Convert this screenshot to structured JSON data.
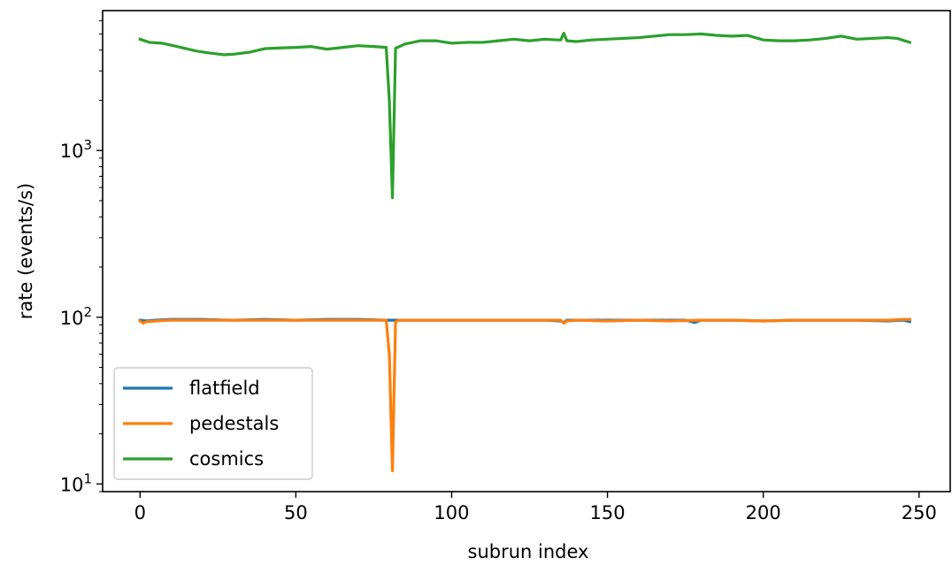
{
  "chart_data": {
    "type": "line",
    "title": "",
    "xlabel": "subrun index",
    "ylabel": "rate (events/s)",
    "yscale": "log",
    "xlim": [
      -12,
      260
    ],
    "ylim": [
      9,
      6900
    ],
    "grid": false,
    "legend_position": "lower-left",
    "x_ticks": [
      0,
      50,
      100,
      150,
      200,
      250
    ],
    "x_tick_labels": [
      "0",
      "50",
      "100",
      "150",
      "200",
      "250"
    ],
    "y_ticks": [
      {
        "value": 10,
        "base": "10",
        "exp": "1"
      },
      {
        "value": 100,
        "base": "10",
        "exp": "2"
      },
      {
        "value": 1000,
        "base": "10",
        "exp": "3"
      }
    ],
    "series": [
      {
        "name": "flatfield",
        "color": "#1f77b4",
        "points": [
          [
            0,
            96
          ],
          [
            2,
            95
          ],
          [
            5,
            96
          ],
          [
            10,
            97
          ],
          [
            20,
            97
          ],
          [
            30,
            96
          ],
          [
            40,
            97
          ],
          [
            50,
            96
          ],
          [
            60,
            97
          ],
          [
            70,
            97
          ],
          [
            79,
            96
          ],
          [
            80,
            96
          ],
          [
            81,
            96
          ],
          [
            82,
            96
          ],
          [
            90,
            96
          ],
          [
            100,
            96
          ],
          [
            110,
            96
          ],
          [
            120,
            96
          ],
          [
            130,
            96
          ],
          [
            135,
            95
          ],
          [
            136,
            93
          ],
          [
            137,
            96
          ],
          [
            150,
            96
          ],
          [
            160,
            96
          ],
          [
            170,
            96
          ],
          [
            175,
            96
          ],
          [
            178,
            93
          ],
          [
            180,
            96
          ],
          [
            190,
            96
          ],
          [
            200,
            95
          ],
          [
            210,
            96
          ],
          [
            220,
            96
          ],
          [
            230,
            96
          ],
          [
            240,
            95
          ],
          [
            245,
            96
          ],
          [
            247,
            94
          ]
        ]
      },
      {
        "name": "pedestals",
        "color": "#ff7f0e",
        "points": [
          [
            0,
            95
          ],
          [
            1,
            92
          ],
          [
            2,
            94
          ],
          [
            5,
            95
          ],
          [
            10,
            96
          ],
          [
            20,
            96
          ],
          [
            30,
            96
          ],
          [
            40,
            96
          ],
          [
            50,
            96
          ],
          [
            60,
            96
          ],
          [
            70,
            96
          ],
          [
            79,
            96
          ],
          [
            80,
            60
          ],
          [
            81,
            12
          ],
          [
            82,
            94
          ],
          [
            83,
            96
          ],
          [
            90,
            96
          ],
          [
            100,
            96
          ],
          [
            110,
            96
          ],
          [
            120,
            96
          ],
          [
            130,
            96
          ],
          [
            135,
            96
          ],
          [
            136,
            92
          ],
          [
            137,
            95
          ],
          [
            140,
            96
          ],
          [
            150,
            95
          ],
          [
            160,
            96
          ],
          [
            170,
            95
          ],
          [
            180,
            96
          ],
          [
            190,
            96
          ],
          [
            200,
            95
          ],
          [
            210,
            96
          ],
          [
            220,
            96
          ],
          [
            230,
            96
          ],
          [
            240,
            96
          ],
          [
            245,
            97
          ],
          [
            247,
            97
          ]
        ]
      },
      {
        "name": "cosmics",
        "color": "#2ca02c",
        "points": [
          [
            0,
            4650
          ],
          [
            3,
            4450
          ],
          [
            7,
            4400
          ],
          [
            12,
            4200
          ],
          [
            18,
            3950
          ],
          [
            22,
            3850
          ],
          [
            27,
            3750
          ],
          [
            30,
            3780
          ],
          [
            35,
            3880
          ],
          [
            40,
            4080
          ],
          [
            45,
            4120
          ],
          [
            50,
            4150
          ],
          [
            55,
            4200
          ],
          [
            60,
            4050
          ],
          [
            65,
            4150
          ],
          [
            70,
            4250
          ],
          [
            75,
            4200
          ],
          [
            79,
            4150
          ],
          [
            80,
            2000
          ],
          [
            81,
            520
          ],
          [
            82,
            4100
          ],
          [
            85,
            4350
          ],
          [
            90,
            4550
          ],
          [
            95,
            4550
          ],
          [
            100,
            4400
          ],
          [
            105,
            4450
          ],
          [
            110,
            4450
          ],
          [
            115,
            4550
          ],
          [
            120,
            4650
          ],
          [
            125,
            4550
          ],
          [
            130,
            4650
          ],
          [
            134,
            4600
          ],
          [
            135,
            4600
          ],
          [
            136,
            5050
          ],
          [
            137,
            4550
          ],
          [
            140,
            4500
          ],
          [
            145,
            4600
          ],
          [
            150,
            4650
          ],
          [
            155,
            4700
          ],
          [
            160,
            4750
          ],
          [
            165,
            4850
          ],
          [
            170,
            4950
          ],
          [
            175,
            4950
          ],
          [
            180,
            5000
          ],
          [
            185,
            4900
          ],
          [
            190,
            4850
          ],
          [
            195,
            4900
          ],
          [
            200,
            4600
          ],
          [
            205,
            4550
          ],
          [
            210,
            4550
          ],
          [
            215,
            4600
          ],
          [
            220,
            4700
          ],
          [
            225,
            4850
          ],
          [
            230,
            4650
          ],
          [
            235,
            4700
          ],
          [
            240,
            4750
          ],
          [
            243,
            4700
          ],
          [
            247,
            4450
          ]
        ]
      }
    ]
  }
}
